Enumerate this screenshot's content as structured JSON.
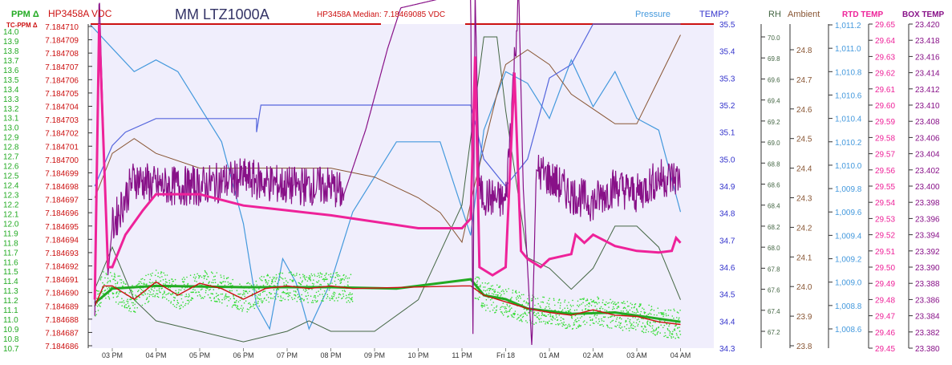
{
  "chart_data": {
    "type": "line",
    "title": "MM LTZ1000A",
    "median_annotation": "HP3458A Median: 7.18469085 VDC",
    "x_ticks": [
      "03 PM",
      "04 PM",
      "05 PM",
      "06 PM",
      "07 PM",
      "08 PM",
      "09 PM",
      "10 PM",
      "11 PM",
      "Fri 18",
      "01 AM",
      "02 AM",
      "03 AM",
      "04 AM"
    ],
    "axis_labels": {
      "ppm": "PPM Δ",
      "tc_ppm": "TC-PPM Δ",
      "vdc": "HP3458A VDC",
      "temp": "TEMP?",
      "pressure": "Pressure",
      "rh": "RH",
      "ambient": "Ambient",
      "rtd": "RTD TEMP",
      "box": "BOX TEMP"
    },
    "axes": {
      "ppm": [
        "14.0",
        "13.9",
        "13.8",
        "13.7",
        "13.6",
        "13.5",
        "13.4",
        "13.3",
        "13.2",
        "13.1",
        "13.0",
        "12.9",
        "12.8",
        "12.7",
        "12.6",
        "12.5",
        "12.4",
        "12.3",
        "12.2",
        "12.1",
        "12.0",
        "11.9",
        "11.8",
        "11.7",
        "11.6",
        "11.5",
        "11.4",
        "11.3",
        "11.2",
        "11.1",
        "11.0",
        "10.9",
        "10.8",
        "10.7"
      ],
      "vdc": [
        "7.184710",
        "7.184709",
        "7.184708",
        "7.184707",
        "7.184706",
        "7.184705",
        "7.184704",
        "7.184703",
        "7.184702",
        "7.184701",
        "7.184700",
        "7.184699",
        "7.184698",
        "7.184697",
        "7.184696",
        "7.184695",
        "7.184694",
        "7.184693",
        "7.184692",
        "7.184691",
        "7.184690",
        "7.184689",
        "7.184688",
        "7.184687",
        "7.184686"
      ],
      "temp": [
        "35.5",
        "35.4",
        "35.3",
        "35.2",
        "35.1",
        "35.0",
        "34.9",
        "34.8",
        "34.7",
        "34.6",
        "34.5",
        "34.4",
        "34.3"
      ],
      "rh": [
        "70.0",
        "69.8",
        "69.6",
        "69.4",
        "69.2",
        "69.0",
        "68.8",
        "68.6",
        "68.4",
        "68.2",
        "68.0",
        "67.8",
        "67.6",
        "67.4",
        "67.2"
      ],
      "ambient": [
        "24.8",
        "24.7",
        "24.6",
        "24.5",
        "24.4",
        "24.3",
        "24.2",
        "24.1",
        "24.0",
        "23.9",
        "23.8"
      ],
      "pressure": [
        "1,011.2",
        "1,011.0",
        "1,010.8",
        "1,010.6",
        "1,010.4",
        "1,010.2",
        "1,010.0",
        "1,009.8",
        "1,009.6",
        "1,009.4",
        "1,009.2",
        "1,009.0",
        "1,008.8",
        "1,008.6"
      ],
      "rtd": [
        "29.65",
        "29.64",
        "29.63",
        "29.62",
        "29.61",
        "29.60",
        "29.59",
        "29.58",
        "29.57",
        "29.56",
        "29.55",
        "29.54",
        "29.53",
        "29.52",
        "29.51",
        "29.50",
        "29.49",
        "29.48",
        "29.47",
        "29.46",
        "29.45"
      ],
      "box": [
        "23.420",
        "23.418",
        "23.416",
        "23.414",
        "23.412",
        "23.410",
        "23.408",
        "23.406",
        "23.404",
        "23.402",
        "23.400",
        "23.398",
        "23.396",
        "23.394",
        "23.392",
        "23.390",
        "23.388",
        "23.386",
        "23.384",
        "23.382",
        "23.380"
      ]
    },
    "colors": {
      "ppm": "#22aa22",
      "vdc": "#cc1111",
      "temp": "#3333cc",
      "pressure": "#4499dd",
      "rh": "#446644",
      "ambient": "#885533",
      "rtd": "#ee2299",
      "box": "#881188",
      "title": "#333366",
      "plot_bg": "#f0eefc"
    },
    "series": [
      {
        "key": "vdc_smooth",
        "axis": "vdc",
        "points": [
          [
            14.6,
            7.184689
          ],
          [
            14.8,
            7.1846905
          ],
          [
            15.0,
            7.1846905
          ],
          [
            15.5,
            7.1846895
          ],
          [
            16.0,
            7.1846908
          ],
          [
            16.5,
            7.1846898
          ],
          [
            17.0,
            7.1846907
          ],
          [
            17.5,
            7.1846903
          ],
          [
            18.0,
            7.1846895
          ],
          [
            18.5,
            7.1846903
          ],
          [
            19.0,
            7.1846905
          ],
          [
            19.5,
            7.1846903
          ],
          [
            20.0,
            7.1846905
          ],
          [
            20.5,
            7.1846903
          ],
          [
            23.0,
            7.1846905
          ],
          [
            23.2,
            7.1846905
          ],
          [
            23.5,
            7.1846898
          ],
          [
            24.0,
            7.1846893
          ],
          [
            24.5,
            7.1846888
          ],
          [
            25.0,
            7.1846885
          ],
          [
            25.5,
            7.1846883
          ],
          [
            26.0,
            7.1846887
          ],
          [
            26.5,
            7.1846883
          ],
          [
            27.0,
            7.1846882
          ],
          [
            27.5,
            7.1846878
          ],
          [
            28.0,
            7.1846876
          ]
        ]
      },
      {
        "key": "vdc_ppm_avg",
        "axis": "vdc",
        "points": [
          [
            14.6,
            7.1846892
          ],
          [
            15.0,
            7.1846903
          ],
          [
            16.0,
            7.1846905
          ],
          [
            18.0,
            7.1846904
          ],
          [
            20.0,
            7.1846904
          ],
          [
            21.5,
            7.1846903
          ],
          [
            23.2,
            7.184691
          ],
          [
            23.5,
            7.1846898
          ],
          [
            24.0,
            7.1846895
          ],
          [
            24.5,
            7.1846888
          ],
          [
            25.5,
            7.1846884
          ],
          [
            26.5,
            7.1846885
          ],
          [
            28.0,
            7.1846878
          ]
        ]
      },
      {
        "key": "pressure",
        "axis": "pressure",
        "points": [
          [
            14.5,
            1011.2
          ],
          [
            15.0,
            1011.0
          ],
          [
            15.5,
            1010.8
          ],
          [
            16.0,
            1010.9
          ],
          [
            16.5,
            1010.8
          ],
          [
            17.0,
            1010.5
          ],
          [
            17.5,
            1010.2
          ],
          [
            18.0,
            1009.5
          ],
          [
            18.3,
            1008.8
          ],
          [
            18.6,
            1008.6
          ],
          [
            18.9,
            1009.2
          ],
          [
            19.2,
            1009.0
          ],
          [
            19.5,
            1008.6
          ],
          [
            20.0,
            1009.0
          ],
          [
            20.5,
            1009.6
          ],
          [
            21.5,
            1010.2
          ],
          [
            22.5,
            1010.2
          ],
          [
            23.2,
            1009.4
          ],
          [
            23.5,
            1010.3
          ],
          [
            24.0,
            1010.8
          ],
          [
            24.5,
            1010.7
          ],
          [
            25.0,
            1010.4
          ],
          [
            25.5,
            1010.9
          ],
          [
            26.0,
            1010.5
          ],
          [
            26.5,
            1010.8
          ],
          [
            27.0,
            1010.4
          ],
          [
            27.5,
            1010.3
          ],
          [
            28.0,
            1009.6
          ]
        ]
      },
      {
        "key": "temp",
        "axis": "temp",
        "points": [
          [
            14.6,
            34.9
          ],
          [
            15.0,
            35.05
          ],
          [
            15.3,
            35.1
          ],
          [
            16.0,
            35.15
          ],
          [
            18.3,
            35.15
          ],
          [
            18.3,
            35.1
          ],
          [
            18.4,
            35.2
          ],
          [
            23.2,
            35.2
          ],
          [
            23.5,
            35.0
          ],
          [
            24.0,
            34.9
          ],
          [
            24.5,
            35.0
          ],
          [
            25.0,
            35.3
          ],
          [
            25.5,
            35.35
          ],
          [
            26.0,
            35.5
          ],
          [
            28.0,
            35.5
          ]
        ]
      },
      {
        "key": "rh",
        "axis": "rh",
        "points": [
          [
            14.6,
            67.6
          ],
          [
            15.0,
            68.0
          ],
          [
            15.5,
            67.5
          ],
          [
            16.0,
            67.3
          ],
          [
            17.0,
            67.2
          ],
          [
            18.0,
            67.1
          ],
          [
            19.0,
            67.2
          ],
          [
            19.5,
            67.3
          ],
          [
            20.0,
            67.2
          ],
          [
            21.0,
            67.2
          ],
          [
            22.0,
            67.5
          ],
          [
            23.0,
            68.4
          ],
          [
            23.5,
            70.0
          ],
          [
            23.8,
            70.0
          ],
          [
            24.0,
            69.3
          ],
          [
            24.5,
            67.9
          ],
          [
            25.0,
            67.8
          ],
          [
            25.5,
            67.6
          ],
          [
            26.0,
            67.8
          ],
          [
            26.5,
            68.2
          ],
          [
            27.0,
            68.2
          ],
          [
            27.5,
            68.0
          ],
          [
            28.0,
            67.5
          ]
        ]
      },
      {
        "key": "ambient",
        "axis": "ambient",
        "points": [
          [
            14.6,
            24.3
          ],
          [
            15.0,
            24.45
          ],
          [
            15.5,
            24.5
          ],
          [
            16.0,
            24.45
          ],
          [
            17.0,
            24.4
          ],
          [
            18.0,
            24.4
          ],
          [
            19.0,
            24.4
          ],
          [
            20.0,
            24.4
          ],
          [
            21.0,
            24.37
          ],
          [
            22.0,
            24.3
          ],
          [
            22.5,
            24.25
          ],
          [
            23.0,
            24.15
          ],
          [
            23.3,
            24.35
          ],
          [
            23.8,
            24.65
          ],
          [
            24.0,
            24.75
          ],
          [
            24.5,
            24.8
          ],
          [
            25.0,
            24.75
          ],
          [
            25.5,
            24.65
          ],
          [
            26.0,
            24.6
          ],
          [
            26.5,
            24.55
          ],
          [
            27.0,
            24.55
          ],
          [
            27.5,
            24.7
          ],
          [
            28.0,
            24.85
          ]
        ]
      },
      {
        "key": "rtd",
        "axis": "rtd",
        "points": [
          [
            14.6,
            29.48
          ],
          [
            14.7,
            29.65
          ],
          [
            14.9,
            29.5
          ],
          [
            15.0,
            29.5
          ],
          [
            15.3,
            29.52
          ],
          [
            15.7,
            29.535
          ],
          [
            16.0,
            29.545
          ],
          [
            17.0,
            29.545
          ],
          [
            18.0,
            29.538
          ],
          [
            19.0,
            29.535
          ],
          [
            20.0,
            29.532
          ],
          [
            21.0,
            29.528
          ],
          [
            22.0,
            29.524
          ],
          [
            23.0,
            29.524
          ],
          [
            23.2,
            29.53
          ],
          [
            23.3,
            29.63
          ],
          [
            23.4,
            29.5
          ],
          [
            23.7,
            29.495
          ],
          [
            24.0,
            29.5
          ],
          [
            24.2,
            29.62
          ],
          [
            24.35,
            29.51
          ],
          [
            24.5,
            29.505
          ],
          [
            24.8,
            29.5
          ],
          [
            25.0,
            29.505
          ],
          [
            25.5,
            29.508
          ],
          [
            25.6,
            29.52
          ],
          [
            25.8,
            29.515
          ],
          [
            26.0,
            29.52
          ],
          [
            26.5,
            29.513
          ],
          [
            27.0,
            29.51
          ],
          [
            27.5,
            29.509
          ],
          [
            27.8,
            29.51
          ],
          [
            27.9,
            29.518
          ],
          [
            28.0,
            29.515
          ]
        ]
      },
      {
        "key": "box",
        "axis": "box",
        "points": [
          [
            14.6,
            23.384
          ],
          [
            14.7,
            23.424
          ],
          [
            14.9,
            23.389
          ],
          [
            15.0,
            23.395
          ],
          [
            15.5,
            23.401
          ],
          [
            16.0,
            23.4
          ],
          [
            17.0,
            23.4
          ],
          [
            18.0,
            23.401
          ],
          [
            19.0,
            23.4
          ],
          [
            20.0,
            23.4
          ],
          [
            20.3,
            23.399
          ],
          [
            20.8,
            23.407
          ],
          [
            21.3,
            23.417
          ],
          [
            21.6,
            23.422
          ],
          [
            23.2,
            23.424
          ],
          [
            23.25,
            23.38
          ],
          [
            23.3,
            23.424
          ],
          [
            23.4,
            23.399
          ],
          [
            24.0,
            23.398
          ],
          [
            24.3,
            23.424
          ],
          [
            24.4,
            23.4
          ],
          [
            24.6,
            23.38
          ],
          [
            24.7,
            23.402
          ],
          [
            25.0,
            23.401
          ],
          [
            25.5,
            23.399
          ],
          [
            26.0,
            23.398
          ],
          [
            26.5,
            23.4
          ],
          [
            27.0,
            23.399
          ],
          [
            27.5,
            23.401
          ],
          [
            28.0,
            23.401
          ]
        ]
      }
    ]
  }
}
